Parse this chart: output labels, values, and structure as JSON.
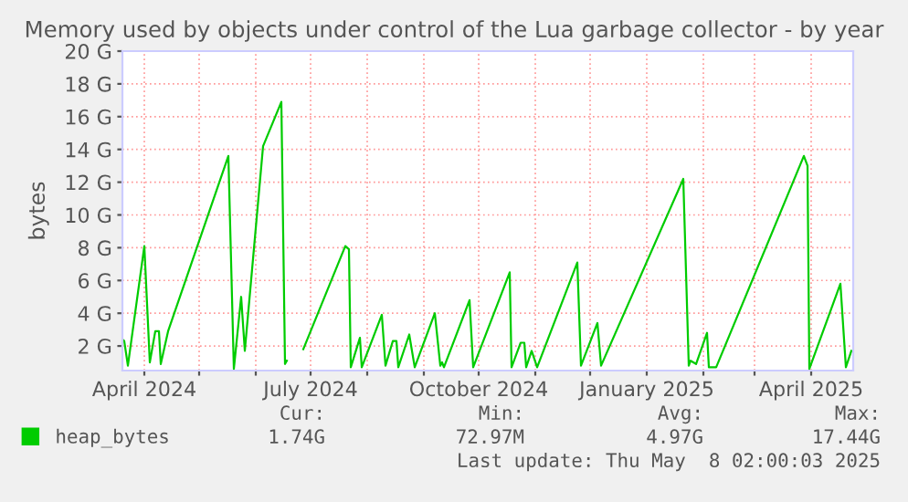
{
  "chart_data": {
    "type": "line",
    "title": "Memory used by objects under control of the Lua garbage collector - by year",
    "ylabel": "bytes",
    "x": [
      "2024-03-20",
      "2024-03-21",
      "2024-03-23",
      "2024-04-01",
      "2024-04-04",
      "2024-04-07",
      "2024-04-09",
      "2024-04-10",
      "2024-04-14",
      "2024-05-17",
      "2024-05-20",
      "2024-05-24",
      "2024-05-26",
      "2024-06-05",
      "2024-06-15",
      "2024-06-17",
      "2024-06-18",
      "2024-06-22",
      "2024-06-27",
      "2024-07-20",
      "2024-07-22",
      "2024-07-23",
      "2024-07-28",
      "2024-07-29",
      "2024-08-09",
      "2024-08-11",
      "2024-08-15",
      "2024-08-17",
      "2024-08-18",
      "2024-08-24",
      "2024-08-27",
      "2024-09-07",
      "2024-09-10",
      "2024-09-11",
      "2024-09-12",
      "2024-09-26",
      "2024-09-28",
      "2024-10-18",
      "2024-10-19",
      "2024-10-24",
      "2024-10-26",
      "2024-10-27",
      "2024-10-30",
      "2024-11-02",
      "2024-11-24",
      "2024-11-26",
      "2024-12-05",
      "2024-12-07",
      "2025-01-21",
      "2025-01-24",
      "2025-01-25",
      "2025-01-28",
      "2025-02-03",
      "2025-02-04",
      "2025-02-08",
      "2025-03-28",
      "2025-03-30",
      "2025-03-31",
      "2025-04-17",
      "2025-04-20",
      "2025-04-23"
    ],
    "series": [
      {
        "name": "heap_bytes",
        "color": "#00cc00",
        "values": [
          2.4,
          2.3,
          0.8,
          8.1,
          1.0,
          2.9,
          2.9,
          0.9,
          2.9,
          13.6,
          0.6,
          5.0,
          1.7,
          14.2,
          16.9,
          0.9,
          1.1,
          null,
          1.8,
          8.1,
          7.9,
          0.7,
          2.5,
          0.7,
          3.9,
          0.8,
          2.3,
          2.3,
          0.7,
          2.7,
          0.7,
          4.0,
          0.8,
          1.0,
          0.7,
          4.8,
          0.7,
          6.5,
          0.7,
          2.2,
          2.2,
          0.7,
          1.7,
          0.7,
          7.1,
          0.8,
          3.4,
          0.8,
          12.2,
          0.8,
          1.1,
          0.9,
          2.8,
          0.7,
          0.7,
          13.6,
          13.0,
          0.6,
          5.8,
          0.7,
          1.7
        ]
      }
    ],
    "xlim": [
      "2024-03-20",
      "2025-04-24"
    ],
    "xticks": [
      {
        "value": "2024-04-01",
        "label": "April 2024"
      },
      {
        "value": "2024-05-01",
        "label": null
      },
      {
        "value": "2024-06-01",
        "label": null
      },
      {
        "value": "2024-07-01",
        "label": "July 2024"
      },
      {
        "value": "2024-08-01",
        "label": null
      },
      {
        "value": "2024-09-01",
        "label": null
      },
      {
        "value": "2024-10-01",
        "label": "October 2024"
      },
      {
        "value": "2024-11-01",
        "label": null
      },
      {
        "value": "2024-12-01",
        "label": null
      },
      {
        "value": "2025-01-01",
        "label": "January 2025"
      },
      {
        "value": "2025-02-01",
        "label": null
      },
      {
        "value": "2025-03-01",
        "label": null
      },
      {
        "value": "2025-04-01",
        "label": "April 2025"
      }
    ],
    "ylim": [
      0.5,
      20
    ],
    "yticks": [
      {
        "value": 2,
        "label": "2 G"
      },
      {
        "value": 4,
        "label": "4 G"
      },
      {
        "value": 6,
        "label": "6 G"
      },
      {
        "value": 8,
        "label": "8 G"
      },
      {
        "value": 10,
        "label": "10 G"
      },
      {
        "value": 12,
        "label": "12 G"
      },
      {
        "value": 14,
        "label": "14 G"
      },
      {
        "value": 16,
        "label": "16 G"
      },
      {
        "value": 18,
        "label": "18 G"
      },
      {
        "value": 20,
        "label": "20 G"
      }
    ],
    "grid": true,
    "legend": "bottom",
    "marker": "none",
    "line_style": "solid",
    "annotations": [
      "Cur:",
      "Min:",
      "Avg:",
      "Max:",
      "1.74G",
      "72.97M",
      "4.97G",
      "17.44G",
      "Last update: Thu May  8 02:00:03 2025"
    ]
  }
}
